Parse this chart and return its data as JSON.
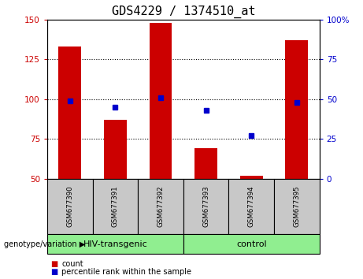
{
  "title": "GDS4229 / 1374510_at",
  "categories": [
    "GSM677390",
    "GSM677391",
    "GSM677392",
    "GSM677393",
    "GSM677394",
    "GSM677395"
  ],
  "bar_values": [
    133,
    87,
    148,
    69,
    52,
    137
  ],
  "percentile_values": [
    49,
    45,
    51,
    43,
    27,
    48
  ],
  "bar_color": "#cc0000",
  "dot_color": "#0000cc",
  "ylim_left": [
    50,
    150
  ],
  "ylim_right": [
    0,
    100
  ],
  "yticks_left": [
    50,
    75,
    100,
    125,
    150
  ],
  "yticks_right": [
    0,
    25,
    50,
    75,
    100
  ],
  "yticklabels_left": [
    "50",
    "75",
    "100",
    "125",
    "150"
  ],
  "yticklabels_right": [
    "0",
    "25",
    "50",
    "75",
    "100%"
  ],
  "dotted_line_y": [
    75,
    100,
    125
  ],
  "bar_bottom": 50,
  "group_label": "genotype/variation",
  "group_info": [
    {
      "start": 0,
      "end": 2,
      "label": "HIV-transgenic"
    },
    {
      "start": 3,
      "end": 5,
      "label": "control"
    }
  ],
  "gray_color": "#c8c8c8",
  "green_color": "#90ee90",
  "title_fontsize": 11,
  "tick_fontsize": 7.5,
  "bar_width": 0.5
}
